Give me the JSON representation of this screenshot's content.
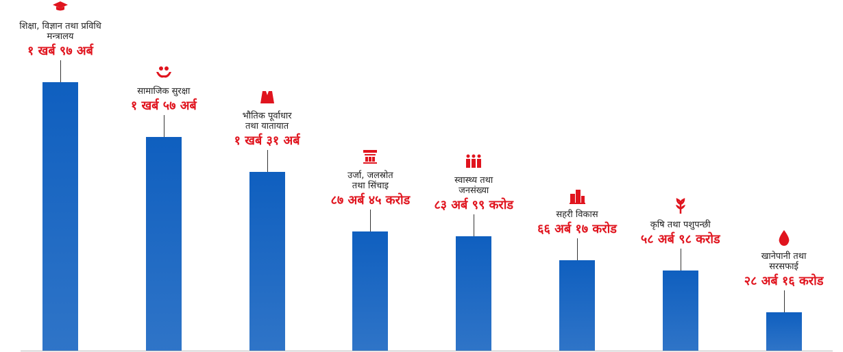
{
  "chart_data": {
    "type": "bar",
    "categories": [
      "शिक्षा, विज्ञान तथा प्रविधि\nमन्त्रालय",
      "सामाजिक सुरक्षा",
      "भौतिक पूर्वाधार\nतथा यातायात",
      "उर्जा, जलस्रोत\nतथा सिंचाइ",
      "स्वास्थ्य तथा\nजनसंख्या",
      "सहरी विकास",
      "कृषि तथा पशुपन्छी",
      "खानेपानी तथा\nसरसफाई"
    ],
    "values": [
      197,
      157,
      131,
      87.45,
      83.99,
      66.17,
      58.98,
      28.16
    ],
    "value_labels": [
      "१ खर्ब ९७ अर्ब",
      "१ खर्ब ५७ अर्ब",
      "१ खर्ब ३१ अर्ब",
      "८७ अर्ब ४५ करोड",
      "८३ अर्ब ९९ करोड",
      "६६ अर्ब १७ करोड",
      "५८ अर्ब ९८ करोड",
      "२८ अर्ब १६ करोड"
    ],
    "color": "#0f5fbf",
    "label_color": "#e0141e"
  }
}
